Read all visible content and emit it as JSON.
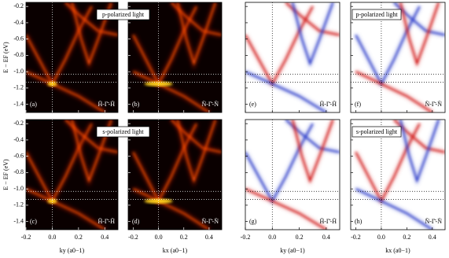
{
  "y_axis_label": "E − EF (eV)",
  "ylim": [
    -1.5,
    -0.15
  ],
  "yticks": [
    -0.2,
    -0.4,
    -0.6,
    -0.8,
    {
      "value": -1.0,
      "label": "-1.0"
    },
    -1.2,
    -1.4
  ],
  "reference_lines": {
    "k": 0,
    "E": [
      -1.03,
      -1.13
    ]
  },
  "columns": [
    {
      "x_axis_label": "ky (a0−1)",
      "xlim": [
        -0.2,
        0.5
      ],
      "xticks": [
        -0.2,
        {
          "value": 0,
          "label": "0.0"
        },
        0.2,
        0.4
      ],
      "path_label": "H̄-Γ̄-H̄",
      "style": "intensity"
    },
    {
      "x_axis_label": "kx (a0−1)",
      "xlim": [
        -0.24,
        0.5
      ],
      "xticks": [
        -0.2,
        {
          "value": 0,
          "label": "0.0"
        },
        0.2,
        0.4
      ],
      "path_label": "N̄-Γ̄-N̄",
      "style": "intensity"
    },
    {
      "x_axis_label": "ky (a0−1)",
      "xlim": [
        -0.2,
        0.5
      ],
      "xticks": [
        -0.2,
        {
          "value": 0,
          "label": "0.0"
        },
        0.2,
        0.4
      ],
      "path_label": "H̄-Γ̄-H̄",
      "style": "difference"
    },
    {
      "x_axis_label": "kx (a0−1)",
      "xlim": [
        -0.24,
        0.5
      ],
      "xticks": [
        -0.2,
        {
          "value": 0,
          "label": "0.0"
        },
        0.2,
        0.4
      ],
      "path_label": "N̄-Γ̄-N̄",
      "style": "difference"
    }
  ],
  "rows": [
    {
      "light": "p-polarized light",
      "panel_labels": [
        "(a)",
        "(b)",
        "(e)",
        "(f)"
      ]
    },
    {
      "light": "s-polarized light",
      "panel_labels": [
        "(c)",
        "(d)",
        "(g)",
        "(h)"
      ]
    }
  ]
}
